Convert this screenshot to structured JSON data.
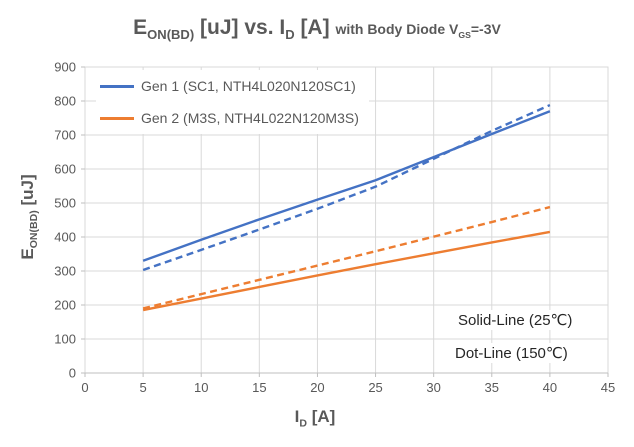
{
  "title": {
    "e": "E",
    "e_sub": "ON(BD)",
    "mid": " [uJ] vs. I",
    "id_sub": "D",
    "a": " [A] ",
    "cond": "with Body Diode V",
    "cond_sub": "GS",
    "cond_end": "=-3V"
  },
  "ylabel": {
    "e": "E",
    "sub": "ON(BD)",
    "unit": " [uJ]"
  },
  "xlabel": {
    "i": "I",
    "sub": "D",
    "unit": " [A]"
  },
  "legend": {
    "items": [
      {
        "label": "Gen 1 (SC1, NTH4L020N120SC1)",
        "color": "#4472C4"
      },
      {
        "label": "Gen 2 (M3S, NTH4L022N120M3S)",
        "color": "#ED7D31"
      }
    ]
  },
  "colors": {
    "gen1_blue": "#4472C4",
    "gen2_orange": "#ED7D31",
    "gridline": "#D9D9D9",
    "axis_line": "#BFBFBF",
    "text_gray": "#595959",
    "annotation_text": "#262626"
  },
  "chart_data": {
    "type": "line",
    "title": "E_ON(BD) [uJ] vs. I_D [A] with Body Diode V_GS=-3V",
    "xlabel": "I_D [A]",
    "ylabel": "E_ON(BD) [uJ]",
    "xlim": [
      0,
      45
    ],
    "ylim": [
      0,
      900
    ],
    "xticks": [
      0,
      5,
      10,
      15,
      20,
      25,
      30,
      35,
      40,
      45
    ],
    "yticks": [
      0,
      100,
      200,
      300,
      400,
      500,
      600,
      700,
      800,
      900
    ],
    "grid": true,
    "legend_position": "top-left-inside",
    "x": [
      5,
      10,
      15,
      20,
      25,
      30,
      35,
      40
    ],
    "series": [
      {
        "name": "Gen 1 (SC1, NTH4L020N120SC1)",
        "condition": "25°C solid",
        "line_style": "solid",
        "color": "#4472C4",
        "values": [
          330,
          392,
          452,
          510,
          567,
          635,
          703,
          770
        ]
      },
      {
        "name": "Gen 1 (SC1, NTH4L020N120SC1)",
        "condition": "150°C dotted",
        "line_style": "dashed",
        "color": "#4472C4",
        "values": [
          303,
          362,
          422,
          483,
          548,
          630,
          712,
          788
        ]
      },
      {
        "name": "Gen 2 (M3S, NTH4L022N120M3S)",
        "condition": "25°C solid",
        "line_style": "solid",
        "color": "#ED7D31",
        "values": [
          185,
          219,
          253,
          287,
          320,
          352,
          384,
          415
        ]
      },
      {
        "name": "Gen 2 (M3S, NTH4L022N120M3S)",
        "condition": "150°C dotted",
        "line_style": "dashed",
        "color": "#ED7D31",
        "values": [
          190,
          232,
          274,
          316,
          358,
          401,
          444,
          488
        ]
      }
    ],
    "annotations": [
      "Solid-Line (25℃)",
      "Dot-Line (150℃)"
    ]
  }
}
